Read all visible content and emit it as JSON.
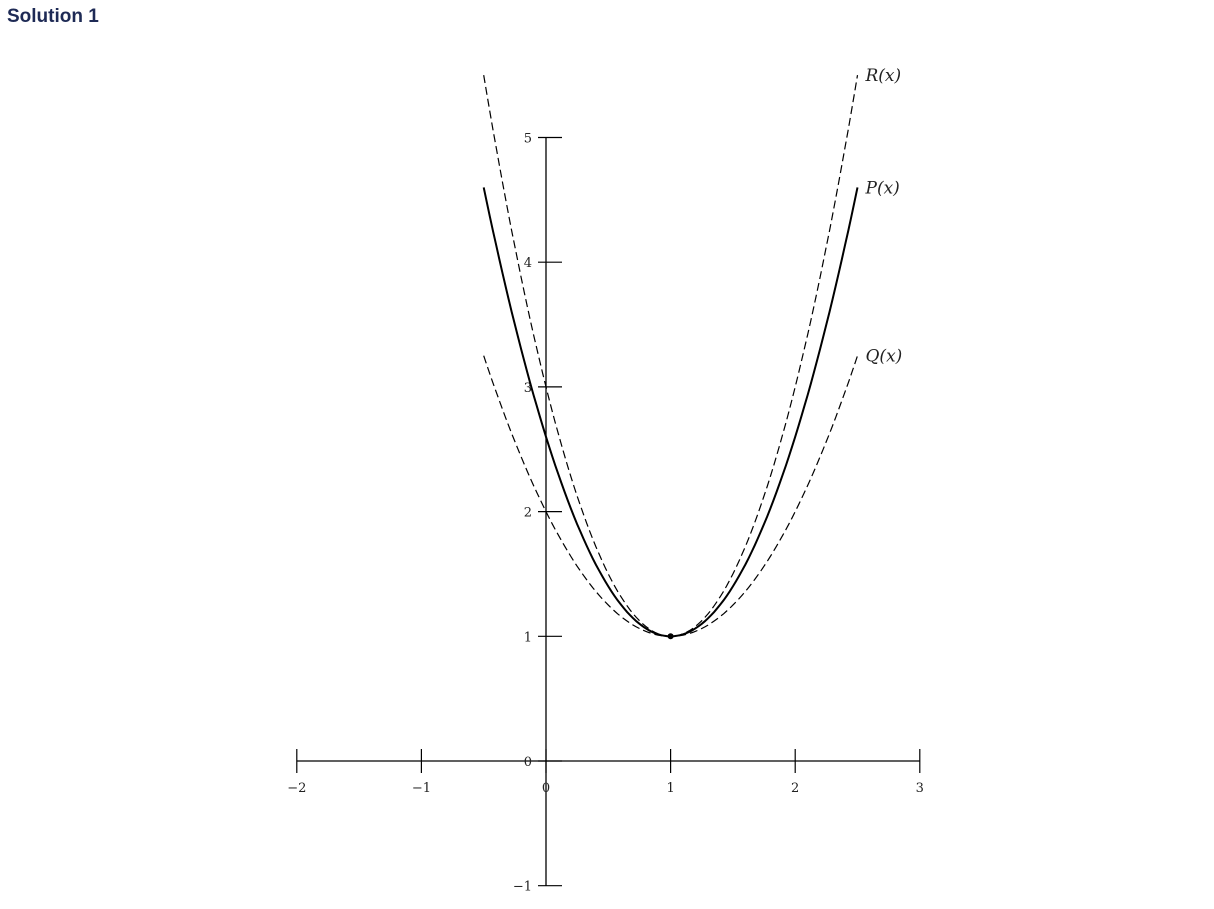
{
  "title": "Solution 1",
  "chart_data": {
    "type": "line",
    "title": "",
    "xlim": [
      -2,
      3
    ],
    "ylim": [
      -1,
      5
    ],
    "x_ticks": [
      "−2",
      "−1",
      "0",
      "1",
      "2",
      "3"
    ],
    "y_ticks": [
      "−1",
      "0",
      "1",
      "2",
      "3",
      "4",
      "5"
    ],
    "grid": false,
    "series": [
      {
        "name": "R(x)",
        "formula": "2(x-1)^2+1",
        "domain": [
          -0.5,
          2.5
        ],
        "style": "dashed",
        "coef": 2
      },
      {
        "name": "P(x)",
        "formula": "1.6(x-1)^2+1",
        "domain": [
          -0.5,
          2.5
        ],
        "style": "solid",
        "coef": 1.6
      },
      {
        "name": "Q(x)",
        "formula": "(x-1)^2+1",
        "domain": [
          -0.5,
          2.5
        ],
        "style": "dashed",
        "coef": 1
      }
    ],
    "points": [
      {
        "x": 1,
        "y": 1
      }
    ],
    "color": "#000000"
  }
}
